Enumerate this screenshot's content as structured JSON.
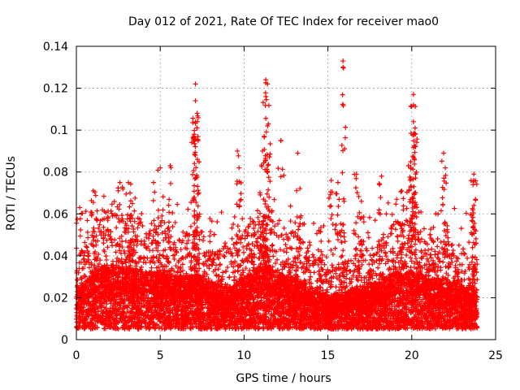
{
  "chart_data": {
    "type": "scatter",
    "title": "Day 012 of 2021, Rate Of TEC Index for receiver mao0",
    "xlabel": "GPS time / hours",
    "ylabel": "ROTI / TECUs",
    "xlim": [
      0,
      25
    ],
    "ylim": [
      0,
      0.14
    ],
    "x_ticks": [
      0,
      5,
      10,
      15,
      20,
      25
    ],
    "y_ticks": [
      0,
      0.02,
      0.04,
      0.06,
      0.08,
      0.1,
      0.12,
      0.14
    ],
    "x_tick_labels": [
      "0",
      "5",
      "10",
      "15",
      "20",
      "25"
    ],
    "y_tick_labels": [
      "0",
      "0.02",
      "0.04",
      "0.06",
      "0.08",
      "0.1",
      "0.12",
      "0.14"
    ],
    "grid": true,
    "marker": "+",
    "color": "#ff0000",
    "series": [
      {
        "name": "ROTI",
        "baseline_profile": {
          "x": [
            0,
            0.5,
            1,
            1.5,
            2,
            2.5,
            3,
            3.5,
            4,
            4.5,
            5,
            5.5,
            6,
            6.5,
            7,
            7.5,
            8,
            8.5,
            9,
            9.5,
            10,
            10.5,
            11,
            11.5,
            12,
            12.5,
            13,
            13.5,
            14,
            14.5,
            15,
            15.5,
            16,
            16.5,
            17,
            17.5,
            18,
            18.5,
            19,
            19.5,
            20,
            20.5,
            21,
            21.5,
            22,
            22.5,
            23,
            23.5,
            24
          ],
          "y": [
            0.014,
            0.018,
            0.022,
            0.024,
            0.025,
            0.024,
            0.024,
            0.023,
            0.022,
            0.022,
            0.022,
            0.021,
            0.02,
            0.02,
            0.021,
            0.02,
            0.018,
            0.017,
            0.016,
            0.018,
            0.02,
            0.022,
            0.024,
            0.024,
            0.022,
            0.02,
            0.02,
            0.018,
            0.016,
            0.014,
            0.013,
            0.013,
            0.014,
            0.015,
            0.016,
            0.017,
            0.018,
            0.02,
            0.022,
            0.022,
            0.022,
            0.021,
            0.02,
            0.019,
            0.018,
            0.018,
            0.017,
            0.016,
            0.016
          ]
        },
        "point_density_per_hour": 380,
        "peaks": [
          {
            "x": 0.2,
            "y": 0.063
          },
          {
            "x": 1.0,
            "y": 0.071
          },
          {
            "x": 2.6,
            "y": 0.075
          },
          {
            "x": 3.1,
            "y": 0.075
          },
          {
            "x": 3.2,
            "y": 0.07
          },
          {
            "x": 4.6,
            "y": 0.075
          },
          {
            "x": 5.0,
            "y": 0.082
          },
          {
            "x": 5.6,
            "y": 0.083
          },
          {
            "x": 7.1,
            "y": 0.122
          },
          {
            "x": 7.1,
            "y": 0.114
          },
          {
            "x": 7.2,
            "y": 0.108
          },
          {
            "x": 7.2,
            "y": 0.101
          },
          {
            "x": 7.0,
            "y": 0.097
          },
          {
            "x": 7.1,
            "y": 0.088
          },
          {
            "x": 9.6,
            "y": 0.09
          },
          {
            "x": 9.7,
            "y": 0.082
          },
          {
            "x": 11.3,
            "y": 0.124
          },
          {
            "x": 11.4,
            "y": 0.122
          },
          {
            "x": 11.3,
            "y": 0.116
          },
          {
            "x": 11.4,
            "y": 0.102
          },
          {
            "x": 11.2,
            "y": 0.097
          },
          {
            "x": 11.1,
            "y": 0.09
          },
          {
            "x": 12.2,
            "y": 0.095
          },
          {
            "x": 13.2,
            "y": 0.089
          },
          {
            "x": 14.6,
            "y": 0.042
          },
          {
            "x": 15.2,
            "y": 0.076
          },
          {
            "x": 15.6,
            "y": 0.075
          },
          {
            "x": 15.9,
            "y": 0.133
          },
          {
            "x": 15.9,
            "y": 0.13
          },
          {
            "x": 16.7,
            "y": 0.079
          },
          {
            "x": 17.0,
            "y": 0.066
          },
          {
            "x": 18.2,
            "y": 0.078
          },
          {
            "x": 19.4,
            "y": 0.071
          },
          {
            "x": 19.8,
            "y": 0.083
          },
          {
            "x": 20.1,
            "y": 0.117
          },
          {
            "x": 20.1,
            "y": 0.112
          },
          {
            "x": 20.1,
            "y": 0.104
          },
          {
            "x": 20.2,
            "y": 0.101
          },
          {
            "x": 20.2,
            "y": 0.098
          },
          {
            "x": 20.1,
            "y": 0.087
          },
          {
            "x": 21.9,
            "y": 0.089
          },
          {
            "x": 22.0,
            "y": 0.082
          },
          {
            "x": 23.7,
            "y": 0.079
          },
          {
            "x": 23.7,
            "y": 0.076
          },
          {
            "x": 23.8,
            "y": 0.067
          }
        ]
      }
    ]
  }
}
